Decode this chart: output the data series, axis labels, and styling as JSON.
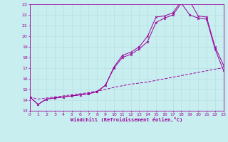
{
  "xlabel": "Windchill (Refroidissement éolien,°C)",
  "xlim": [
    0,
    23
  ],
  "ylim": [
    13,
    23
  ],
  "xticks": [
    0,
    1,
    2,
    3,
    4,
    5,
    6,
    7,
    8,
    9,
    10,
    11,
    12,
    13,
    14,
    15,
    16,
    17,
    18,
    19,
    20,
    21,
    22,
    23
  ],
  "yticks": [
    13,
    14,
    15,
    16,
    17,
    18,
    19,
    20,
    21,
    22,
    23
  ],
  "bg_color": "#c8eef0",
  "grid_color": "#b8dfe2",
  "line_color": "#990099",
  "line1_x": [
    0,
    1,
    2,
    3,
    4,
    5,
    6,
    7,
    8,
    9,
    10,
    11,
    12,
    13,
    14,
    15,
    16,
    17,
    18,
    19,
    20,
    21,
    22,
    23
  ],
  "line1_y": [
    14.3,
    13.6,
    14.1,
    14.2,
    14.3,
    14.4,
    14.5,
    14.6,
    14.8,
    15.4,
    17.1,
    18.2,
    18.5,
    19.0,
    20.0,
    21.8,
    21.9,
    22.2,
    23.3,
    23.3,
    21.9,
    21.8,
    19.0,
    17.3
  ],
  "line2_x": [
    0,
    1,
    2,
    3,
    4,
    5,
    6,
    7,
    8,
    9,
    10,
    11,
    12,
    13,
    14,
    15,
    16,
    17,
    18,
    19,
    20,
    21,
    22,
    23
  ],
  "line2_y": [
    14.3,
    13.6,
    14.1,
    14.2,
    14.3,
    14.4,
    14.5,
    14.6,
    14.8,
    15.4,
    17.0,
    18.0,
    18.3,
    18.8,
    19.5,
    21.3,
    21.7,
    22.0,
    23.1,
    22.0,
    21.7,
    21.6,
    18.8,
    16.8
  ],
  "line3_x": [
    0,
    1,
    2,
    3,
    4,
    5,
    6,
    7,
    8,
    9,
    10,
    11,
    12,
    13,
    14,
    15,
    16,
    17,
    18,
    19,
    20,
    21,
    22,
    23
  ],
  "line3_y": [
    14.3,
    14.1,
    14.2,
    14.3,
    14.4,
    14.5,
    14.6,
    14.7,
    14.85,
    15.0,
    15.2,
    15.35,
    15.5,
    15.6,
    15.7,
    15.85,
    16.0,
    16.15,
    16.3,
    16.45,
    16.6,
    16.75,
    16.9,
    17.05
  ]
}
